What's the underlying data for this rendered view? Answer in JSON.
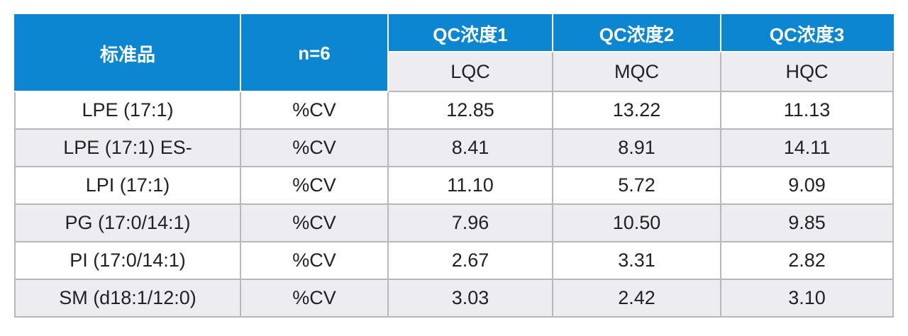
{
  "header": {
    "standard": "标准品",
    "n": "n=6",
    "qc_levels": [
      "QC浓度1",
      "QC浓度2",
      "QC浓度3"
    ],
    "qc_codes": [
      "LQC",
      "MQC",
      "HQC"
    ]
  },
  "rows": [
    {
      "name": "LPE (17:1)",
      "metric": "%CV",
      "values": [
        "12.85",
        "13.22",
        "11.13"
      ]
    },
    {
      "name": "LPE (17:1) ES-",
      "metric": "%CV",
      "values": [
        "8.41",
        "8.91",
        "14.11"
      ]
    },
    {
      "name": "LPI (17:1)",
      "metric": "%CV",
      "values": [
        "11.10",
        "5.72",
        "9.09"
      ]
    },
    {
      "name": "PG (17:0/14:1)",
      "metric": "%CV",
      "values": [
        "7.96",
        "10.50",
        "9.85"
      ]
    },
    {
      "name": "PI (17:0/14:1)",
      "metric": "%CV",
      "values": [
        "2.67",
        "3.31",
        "2.82"
      ]
    },
    {
      "name": "SM (d18:1/12:0)",
      "metric": "%CV",
      "values": [
        "3.03",
        "2.42",
        "3.10"
      ]
    }
  ]
}
